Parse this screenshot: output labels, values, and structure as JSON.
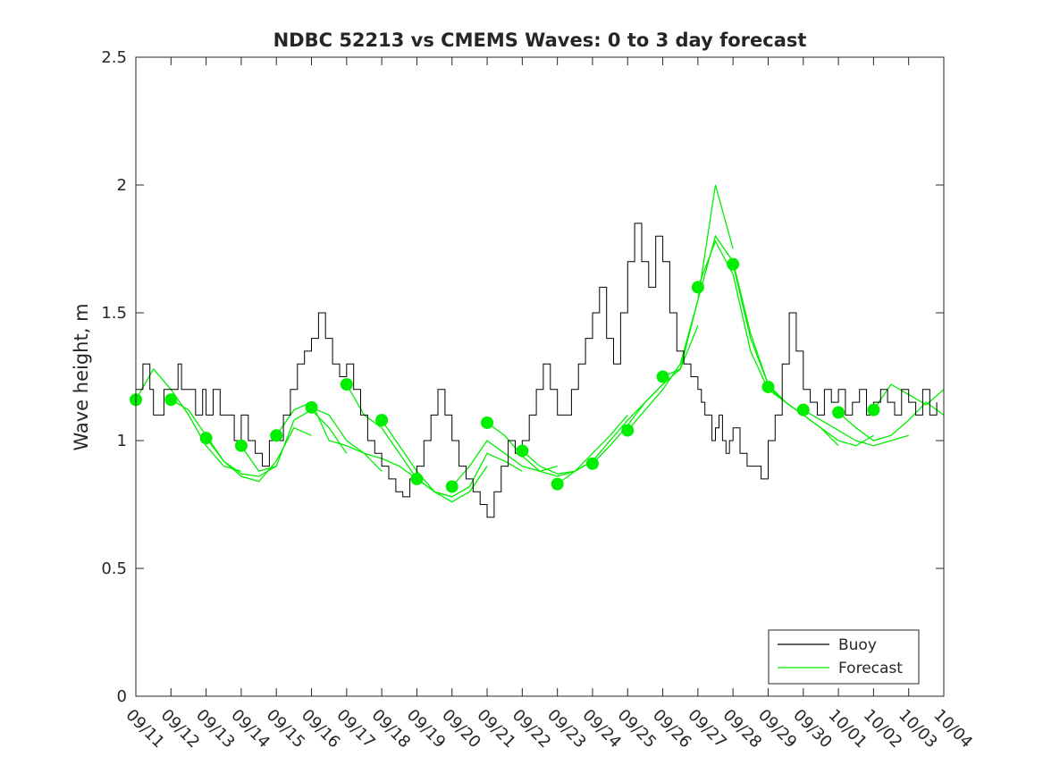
{
  "chart_data": {
    "type": "line",
    "title": "NDBC 52213 vs CMEMS Waves: 0 to 3 day forecast",
    "xlabel": "",
    "ylabel": "Wave height, m",
    "xlim": [
      "09/11",
      "10/04"
    ],
    "ylim": [
      0,
      2.5
    ],
    "yticks": [
      "0",
      "0.5",
      "1",
      "1.5",
      "2",
      "2.5"
    ],
    "xticks": [
      "09/11",
      "09/12",
      "09/13",
      "09/14",
      "09/15",
      "09/16",
      "09/17",
      "09/18",
      "09/19",
      "09/20",
      "09/21",
      "09/22",
      "09/23",
      "09/24",
      "09/25",
      "09/26",
      "09/27",
      "09/28",
      "09/29",
      "09/30",
      "10/01",
      "10/02",
      "10/03",
      "10/04"
    ],
    "grid": false,
    "legend": {
      "placement": "bottom-right",
      "entries": [
        "Buoy",
        "Forecast"
      ]
    },
    "colors": {
      "buoy": "#000000",
      "forecast": "#00ee00"
    },
    "series": [
      {
        "name": "Buoy",
        "x_day": [
          0,
          0.2,
          0.4,
          0.5,
          0.6,
          0.8,
          1.0,
          1.2,
          1.3,
          1.5,
          1.7,
          1.9,
          2.0,
          2.2,
          2.4,
          2.6,
          2.8,
          3.0,
          3.2,
          3.4,
          3.6,
          3.8,
          4.0,
          4.2,
          4.4,
          4.6,
          4.8,
          5.0,
          5.2,
          5.4,
          5.6,
          5.8,
          6.0,
          6.2,
          6.4,
          6.6,
          6.8,
          7.0,
          7.2,
          7.4,
          7.6,
          7.8,
          8.0,
          8.2,
          8.4,
          8.6,
          8.8,
          9.0,
          9.2,
          9.4,
          9.6,
          9.8,
          10.0,
          10.2,
          10.4,
          10.6,
          10.8,
          11.0,
          11.2,
          11.4,
          11.6,
          11.8,
          12.0,
          12.2,
          12.4,
          12.6,
          12.8,
          13.0,
          13.2,
          13.4,
          13.6,
          13.8,
          14.0,
          14.2,
          14.4,
          14.6,
          14.8,
          15.0,
          15.2,
          15.4,
          15.6,
          15.8,
          16.0,
          16.1,
          16.2,
          16.3,
          16.4,
          16.5,
          16.6,
          16.7,
          16.8,
          16.9,
          17.0,
          17.2,
          17.4,
          17.6,
          17.8,
          18.0,
          18.2,
          18.4,
          18.6,
          18.8,
          19.0,
          19.2,
          19.4,
          19.6,
          19.8,
          20.0,
          20.2,
          20.4,
          20.6,
          20.8,
          21.0,
          21.2,
          21.4,
          21.6,
          21.8,
          22.0,
          22.2,
          22.4,
          22.6,
          22.8
        ],
        "values": [
          1.2,
          1.3,
          1.2,
          1.1,
          1.1,
          1.2,
          1.2,
          1.3,
          1.2,
          1.2,
          1.1,
          1.2,
          1.1,
          1.2,
          1.1,
          1.1,
          1.0,
          1.1,
          1.0,
          0.95,
          0.9,
          1.0,
          1.0,
          1.1,
          1.2,
          1.3,
          1.35,
          1.4,
          1.5,
          1.4,
          1.3,
          1.25,
          1.3,
          1.2,
          1.1,
          1.0,
          0.95,
          0.9,
          0.85,
          0.8,
          0.78,
          0.85,
          0.9,
          1.0,
          1.1,
          1.2,
          1.1,
          1.0,
          0.9,
          0.85,
          0.8,
          0.75,
          0.7,
          0.8,
          0.9,
          1.0,
          0.95,
          1.0,
          1.1,
          1.2,
          1.3,
          1.2,
          1.1,
          1.1,
          1.2,
          1.3,
          1.4,
          1.5,
          1.6,
          1.4,
          1.3,
          1.5,
          1.7,
          1.85,
          1.7,
          1.6,
          1.8,
          1.7,
          1.5,
          1.35,
          1.3,
          1.25,
          1.2,
          1.15,
          1.1,
          1.1,
          1.0,
          1.05,
          1.1,
          1.0,
          0.95,
          1.0,
          1.05,
          0.95,
          0.9,
          0.9,
          0.85,
          1.0,
          1.1,
          1.3,
          1.5,
          1.35,
          1.2,
          1.15,
          1.1,
          1.2,
          1.15,
          1.2,
          1.1,
          1.15,
          1.2,
          1.1,
          1.15,
          1.2,
          1.15,
          1.1,
          1.2,
          1.15,
          1.1,
          1.2,
          1.1,
          1.15
        ]
      },
      {
        "name": "Forecast",
        "x_day": [
          0,
          1,
          2,
          3,
          4,
          5,
          6,
          7,
          8,
          9,
          10,
          11,
          12,
          13,
          14,
          15,
          16,
          17,
          18,
          19,
          20,
          21,
          22,
          23
        ],
        "values": [
          1.16,
          1.16,
          1.01,
          0.98,
          1.02,
          1.13,
          1.22,
          1.08,
          0.85,
          0.82,
          1.07,
          0.96,
          0.83,
          0.91,
          1.04,
          1.25,
          1.6,
          1.69,
          1.21,
          1.12,
          1.11,
          1.12,
          1.1,
          1.19
        ]
      }
    ],
    "analysis_points": {
      "x_day": [
        0,
        1,
        2,
        3,
        4,
        5,
        6,
        7,
        8,
        9,
        10,
        11,
        12,
        13,
        14,
        15,
        16,
        17,
        18,
        19,
        20,
        21
      ],
      "values": [
        1.16,
        1.16,
        1.01,
        0.98,
        1.02,
        1.13,
        1.22,
        1.08,
        0.85,
        0.82,
        1.07,
        0.96,
        0.83,
        0.91,
        1.04,
        1.25,
        1.6,
        1.69,
        1.21,
        1.12,
        1.11,
        1.12
      ]
    },
    "forecast_runs": [
      {
        "start_day": 0,
        "x_day": [
          0,
          0.5,
          1,
          1.5,
          2,
          2.5,
          3
        ],
        "values": [
          1.16,
          1.28,
          1.2,
          1.1,
          0.98,
          0.9,
          0.88
        ]
      },
      {
        "start_day": 1,
        "x_day": [
          1,
          1.5,
          2,
          2.5,
          3,
          3.5,
          4
        ],
        "values": [
          1.16,
          1.12,
          1.02,
          0.92,
          0.87,
          0.86,
          0.9
        ]
      },
      {
        "start_day": 2,
        "x_day": [
          2,
          2.5,
          3,
          3.5,
          4,
          4.5,
          5
        ],
        "values": [
          1.01,
          0.92,
          0.86,
          0.84,
          0.92,
          1.05,
          1.02
        ]
      },
      {
        "start_day": 3,
        "x_day": [
          3,
          3.5,
          4,
          4.5,
          5,
          5.5,
          6
        ],
        "values": [
          0.98,
          0.88,
          0.9,
          1.08,
          1.12,
          1.05,
          0.95
        ]
      },
      {
        "start_day": 4,
        "x_day": [
          4,
          4.5,
          5,
          5.5,
          6,
          6.5,
          7
        ],
        "values": [
          1.02,
          1.12,
          1.15,
          1.0,
          0.98,
          0.95,
          0.88
        ]
      },
      {
        "start_day": 5,
        "x_day": [
          5,
          5.5,
          6,
          6.5,
          7,
          7.5,
          8
        ],
        "values": [
          1.13,
          1.1,
          1.0,
          0.95,
          0.93,
          0.9,
          0.85
        ]
      },
      {
        "start_day": 6,
        "x_day": [
          6,
          6.5,
          7,
          7.5,
          8,
          8.5,
          9
        ],
        "values": [
          1.22,
          1.1,
          1.05,
          0.95,
          0.85,
          0.8,
          0.78
        ]
      },
      {
        "start_day": 7,
        "x_day": [
          7,
          7.5,
          8,
          8.5,
          9,
          9.5,
          10
        ],
        "values": [
          1.08,
          0.98,
          0.88,
          0.8,
          0.76,
          0.8,
          0.9
        ]
      },
      {
        "start_day": 8,
        "x_day": [
          8,
          8.5,
          9,
          9.5,
          10,
          10.5,
          11
        ],
        "values": [
          0.85,
          0.8,
          0.78,
          0.82,
          0.95,
          0.92,
          0.88
        ]
      },
      {
        "start_day": 9,
        "x_day": [
          9,
          9.5,
          10,
          10.5,
          11,
          11.5,
          12
        ],
        "values": [
          0.82,
          0.9,
          1.0,
          0.95,
          0.9,
          0.88,
          0.9
        ]
      },
      {
        "start_day": 10,
        "x_day": [
          10,
          10.5,
          11,
          11.5,
          12,
          12.5,
          13
        ],
        "values": [
          1.07,
          1.02,
          0.94,
          0.88,
          0.86,
          0.88,
          0.92
        ]
      },
      {
        "start_day": 11,
        "x_day": [
          11,
          11.5,
          12,
          12.5,
          13,
          13.5,
          14
        ],
        "values": [
          0.96,
          0.9,
          0.87,
          0.88,
          0.95,
          1.02,
          1.1
        ]
      },
      {
        "start_day": 12,
        "x_day": [
          12,
          12.5,
          13,
          13.5,
          14,
          14.5,
          15
        ],
        "values": [
          0.83,
          0.88,
          0.92,
          1.0,
          1.08,
          1.15,
          1.22
        ]
      },
      {
        "start_day": 13,
        "x_day": [
          13,
          13.5,
          14,
          14.5,
          15,
          15.5,
          16
        ],
        "values": [
          0.91,
          0.98,
          1.06,
          1.15,
          1.22,
          1.28,
          1.45
        ]
      },
      {
        "start_day": 14,
        "x_day": [
          14,
          14.5,
          15,
          15.5,
          16,
          16.5,
          17
        ],
        "values": [
          1.04,
          1.12,
          1.2,
          1.3,
          1.55,
          2.0,
          1.75
        ]
      },
      {
        "start_day": 15,
        "x_day": [
          15,
          15.5,
          16,
          16.5,
          17,
          17.5,
          18
        ],
        "values": [
          1.25,
          1.28,
          1.55,
          1.8,
          1.7,
          1.42,
          1.22
        ]
      },
      {
        "start_day": 16,
        "x_day": [
          16,
          16.5,
          17,
          17.5,
          18,
          18.5,
          19
        ],
        "values": [
          1.6,
          1.78,
          1.65,
          1.35,
          1.2,
          1.15,
          1.1
        ]
      },
      {
        "start_day": 17,
        "x_day": [
          17,
          17.5,
          18,
          18.5,
          19,
          19.5,
          20
        ],
        "values": [
          1.69,
          1.4,
          1.22,
          1.15,
          1.1,
          1.05,
          0.98
        ]
      },
      {
        "start_day": 18,
        "x_day": [
          18,
          18.5,
          19,
          19.5,
          20,
          20.5,
          21
        ],
        "values": [
          1.21,
          1.15,
          1.1,
          1.05,
          1.0,
          0.98,
          1.02
        ]
      },
      {
        "start_day": 19,
        "x_day": [
          19,
          19.5,
          20,
          20.5,
          21,
          21.5,
          22
        ],
        "values": [
          1.12,
          1.08,
          1.04,
          1.0,
          0.98,
          1.0,
          1.02
        ]
      },
      {
        "start_day": 20,
        "x_day": [
          20,
          20.5,
          21,
          21.5,
          22,
          22.5,
          23
        ],
        "values": [
          1.11,
          1.05,
          1.0,
          1.02,
          1.08,
          1.15,
          1.1
        ]
      },
      {
        "start_day": 21,
        "x_day": [
          21,
          21.5,
          22,
          22.5,
          23
        ],
        "values": [
          1.12,
          1.22,
          1.18,
          1.14,
          1.2
        ]
      }
    ]
  }
}
